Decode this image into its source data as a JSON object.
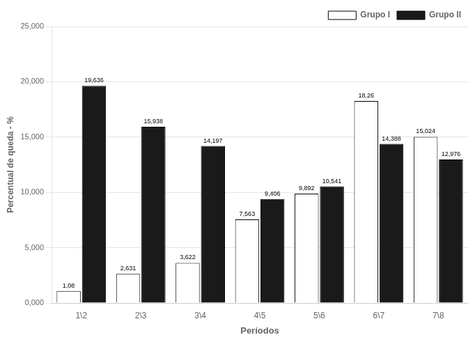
{
  "chart_data": {
    "type": "bar",
    "categories": [
      "1\\2",
      "2\\3",
      "3\\4",
      "4\\5",
      "5\\6",
      "6\\7",
      "7\\8"
    ],
    "series": [
      {
        "name": "Grupo I",
        "color": "#ffffff",
        "values": [
          1080,
          2631,
          3622,
          7563,
          9892,
          18260,
          15024
        ],
        "value_labels": [
          "1,08",
          "2,631",
          "3,622",
          "7,563",
          "9,892",
          "18,26",
          "15,024"
        ]
      },
      {
        "name": "Grupo II",
        "color": "#1a1a1a",
        "values": [
          19636,
          15938,
          14197,
          9406,
          10541,
          14388,
          12976
        ],
        "value_labels": [
          "19,636",
          "15,938",
          "14,197",
          "9,406",
          "10,541",
          "14,388",
          "12,976"
        ]
      }
    ],
    "xlabel": "Períodos",
    "ylabel": "Percentual de queda - %",
    "ylim": [
      0,
      25000
    ],
    "yticks": [
      {
        "value": 0,
        "label": "0,000"
      },
      {
        "value": 5000,
        "label": "5,000"
      },
      {
        "value": 10000,
        "label": "10,000"
      },
      {
        "value": 15000,
        "label": "15,000"
      },
      {
        "value": 20000,
        "label": "20,000"
      },
      {
        "value": 25000,
        "label": "25,000"
      }
    ],
    "grid": "y",
    "legend": "upper right",
    "data_labels": true
  }
}
